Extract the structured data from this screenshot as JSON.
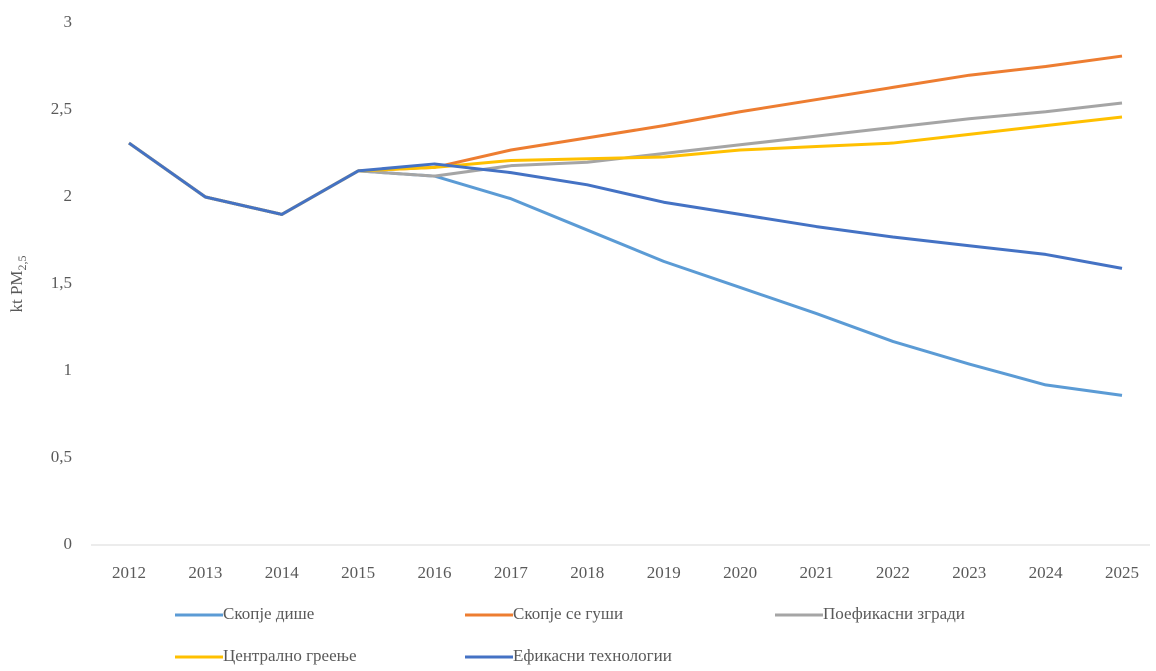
{
  "chart_data": {
    "type": "line",
    "y_label": {
      "text": "kt PM",
      "subscript": "2,5"
    },
    "categories": [
      "2012",
      "2013",
      "2014",
      "2015",
      "2016",
      "2017",
      "2018",
      "2019",
      "2020",
      "2021",
      "2022",
      "2023",
      "2024",
      "2025"
    ],
    "series": [
      {
        "name": "Скопје дише",
        "color": "#5b9bd5",
        "values": [
          2.31,
          2.0,
          1.9,
          2.15,
          2.12,
          1.99,
          1.81,
          1.63,
          1.48,
          1.33,
          1.17,
          1.04,
          0.92,
          0.86
        ]
      },
      {
        "name": "Скопје се гуши",
        "color": "#ed7d31",
        "values": [
          2.31,
          2.0,
          1.9,
          2.15,
          2.17,
          2.27,
          2.34,
          2.41,
          2.49,
          2.56,
          2.63,
          2.7,
          2.75,
          2.81
        ]
      },
      {
        "name": "Поефикасни згради",
        "color": "#a5a5a5",
        "values": [
          2.31,
          2.0,
          1.9,
          2.15,
          2.12,
          2.18,
          2.2,
          2.25,
          2.3,
          2.35,
          2.4,
          2.45,
          2.49,
          2.54
        ]
      },
      {
        "name": "Централно греење",
        "color": "#ffc000",
        "values": [
          2.31,
          2.0,
          1.9,
          2.15,
          2.17,
          2.21,
          2.22,
          2.23,
          2.27,
          2.29,
          2.31,
          2.36,
          2.41,
          2.46
        ]
      },
      {
        "name": "Ефикасни технологии",
        "color": "#4472c4",
        "values": [
          2.31,
          2.0,
          1.9,
          2.15,
          2.19,
          2.14,
          2.07,
          1.97,
          1.9,
          1.83,
          1.77,
          1.72,
          1.67,
          1.59
        ]
      }
    ],
    "ylim": [
      0,
      3
    ],
    "yticks": [
      0,
      {
        "value": 0.5,
        "label": "0,5"
      },
      1,
      {
        "value": 1.5,
        "label": "1,5"
      },
      2,
      {
        "value": 2.5,
        "label": "2,5"
      },
      3
    ],
    "grid": false
  }
}
